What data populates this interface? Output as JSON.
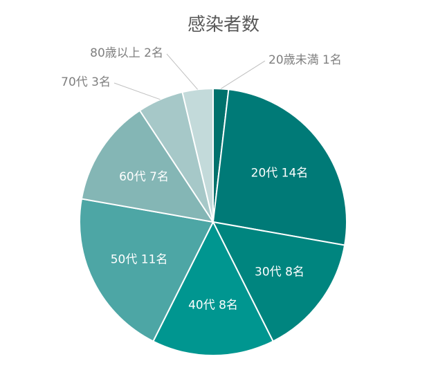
{
  "chart_data": {
    "type": "pie",
    "title": "感染者数",
    "categories": [
      "20歳未満",
      "20代",
      "30代",
      "40代",
      "50代",
      "60代",
      "70代",
      "80歳以上"
    ],
    "values": [
      1,
      14,
      8,
      8,
      11,
      7,
      3,
      2
    ],
    "unit": "名",
    "labels": [
      "20歳未満 1名",
      "20代 14名",
      "30代 8名",
      "40代 8名",
      "50代 11名",
      "60代 7名",
      "70代 3名",
      "80歳以上 2名"
    ],
    "colors": [
      "#00716C",
      "#007A77",
      "#00857F",
      "#009690",
      "#4DA6A5",
      "#84B6B5",
      "#A6C8C8",
      "#C3DADA"
    ],
    "label_positions": [
      "outside",
      "inside",
      "inside",
      "inside",
      "inside",
      "inside",
      "outside",
      "outside"
    ],
    "start": "12 o'clock",
    "direction": "clockwise",
    "legend": "none"
  }
}
